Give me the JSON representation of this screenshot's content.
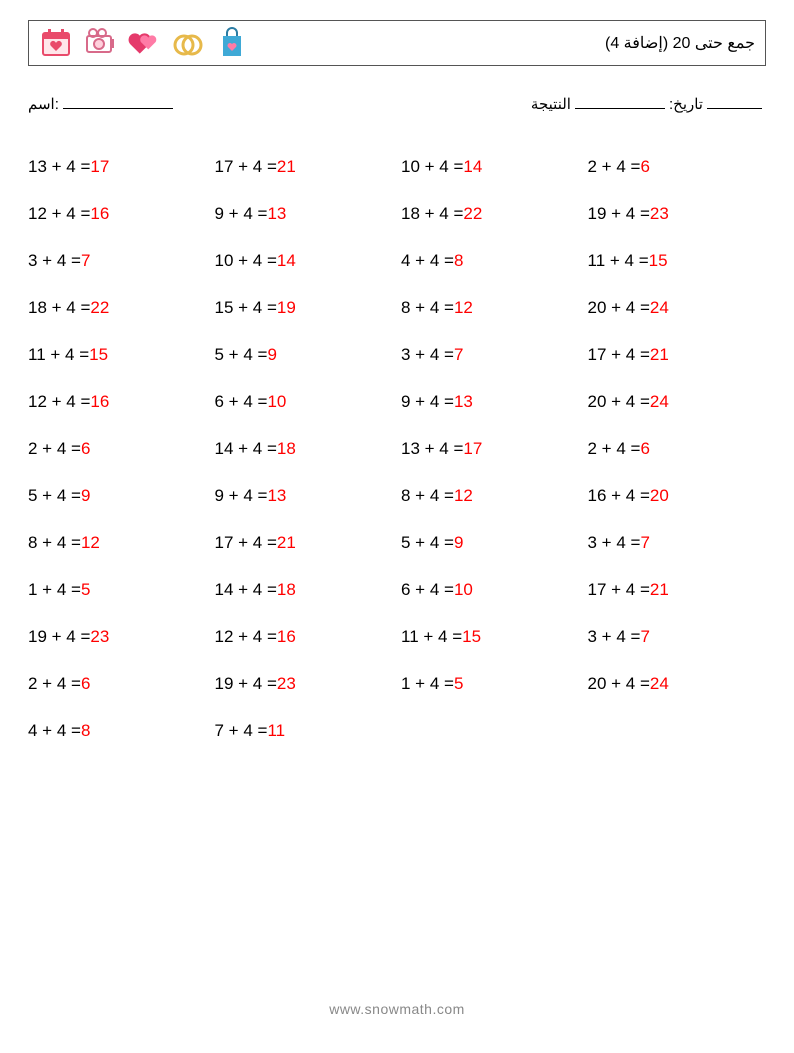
{
  "colors": {
    "text": "#000000",
    "answer": "#ff0000",
    "footer": "#888888",
    "border": "#555555",
    "background": "#ffffff"
  },
  "title": "(جمع حتى 20 (إضافة 4",
  "icons": [
    {
      "name": "calendar-heart-icon",
      "label": "📅"
    },
    {
      "name": "camera-icon",
      "label": "🎥"
    },
    {
      "name": "heart-icon",
      "label": "💕"
    },
    {
      "name": "rings-icon",
      "label": "💍"
    },
    {
      "name": "bag-icon",
      "label": "🛍"
    }
  ],
  "meta": {
    "name_label": "اسم:",
    "score_label": "النتيجة",
    "date_label": ":تاريخ"
  },
  "problems": {
    "columns": 4,
    "rows": 13,
    "font_size": 17,
    "items": [
      {
        "a": 13,
        "b": 4,
        "r": 17
      },
      {
        "a": 17,
        "b": 4,
        "r": 21
      },
      {
        "a": 10,
        "b": 4,
        "r": 14
      },
      {
        "a": 2,
        "b": 4,
        "r": 6
      },
      {
        "a": 12,
        "b": 4,
        "r": 16
      },
      {
        "a": 9,
        "b": 4,
        "r": 13
      },
      {
        "a": 18,
        "b": 4,
        "r": 22
      },
      {
        "a": 19,
        "b": 4,
        "r": 23
      },
      {
        "a": 3,
        "b": 4,
        "r": 7
      },
      {
        "a": 10,
        "b": 4,
        "r": 14
      },
      {
        "a": 4,
        "b": 4,
        "r": 8
      },
      {
        "a": 11,
        "b": 4,
        "r": 15
      },
      {
        "a": 18,
        "b": 4,
        "r": 22
      },
      {
        "a": 15,
        "b": 4,
        "r": 19
      },
      {
        "a": 8,
        "b": 4,
        "r": 12
      },
      {
        "a": 20,
        "b": 4,
        "r": 24
      },
      {
        "a": 11,
        "b": 4,
        "r": 15
      },
      {
        "a": 5,
        "b": 4,
        "r": 9
      },
      {
        "a": 3,
        "b": 4,
        "r": 7
      },
      {
        "a": 17,
        "b": 4,
        "r": 21
      },
      {
        "a": 12,
        "b": 4,
        "r": 16
      },
      {
        "a": 6,
        "b": 4,
        "r": 10
      },
      {
        "a": 9,
        "b": 4,
        "r": 13
      },
      {
        "a": 20,
        "b": 4,
        "r": 24
      },
      {
        "a": 2,
        "b": 4,
        "r": 6
      },
      {
        "a": 14,
        "b": 4,
        "r": 18
      },
      {
        "a": 13,
        "b": 4,
        "r": 17
      },
      {
        "a": 2,
        "b": 4,
        "r": 6
      },
      {
        "a": 5,
        "b": 4,
        "r": 9
      },
      {
        "a": 9,
        "b": 4,
        "r": 13
      },
      {
        "a": 8,
        "b": 4,
        "r": 12
      },
      {
        "a": 16,
        "b": 4,
        "r": 20
      },
      {
        "a": 8,
        "b": 4,
        "r": 12
      },
      {
        "a": 17,
        "b": 4,
        "r": 21
      },
      {
        "a": 5,
        "b": 4,
        "r": 9
      },
      {
        "a": 3,
        "b": 4,
        "r": 7
      },
      {
        "a": 1,
        "b": 4,
        "r": 5
      },
      {
        "a": 14,
        "b": 4,
        "r": 18
      },
      {
        "a": 6,
        "b": 4,
        "r": 10
      },
      {
        "a": 17,
        "b": 4,
        "r": 21
      },
      {
        "a": 19,
        "b": 4,
        "r": 23
      },
      {
        "a": 12,
        "b": 4,
        "r": 16
      },
      {
        "a": 11,
        "b": 4,
        "r": 15
      },
      {
        "a": 3,
        "b": 4,
        "r": 7
      },
      {
        "a": 2,
        "b": 4,
        "r": 6
      },
      {
        "a": 19,
        "b": 4,
        "r": 23
      },
      {
        "a": 1,
        "b": 4,
        "r": 5
      },
      {
        "a": 20,
        "b": 4,
        "r": 24
      },
      {
        "a": 4,
        "b": 4,
        "r": 8
      },
      {
        "a": 7,
        "b": 4,
        "r": 11
      }
    ]
  },
  "footer": "www.snowmath.com"
}
